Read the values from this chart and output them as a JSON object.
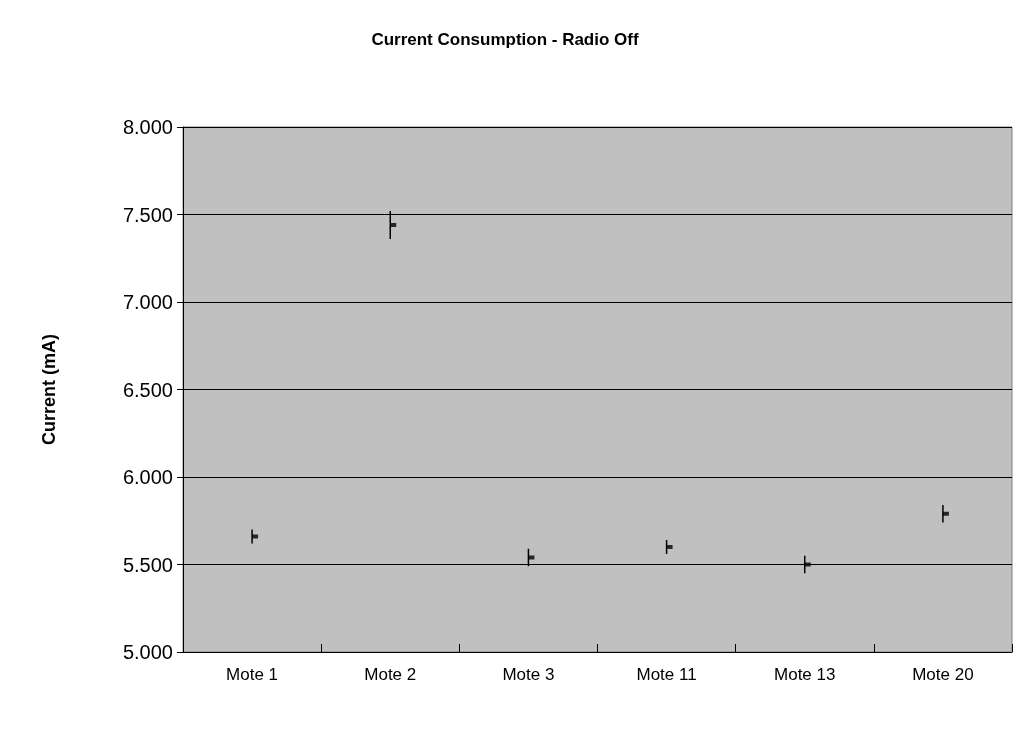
{
  "chart_data": {
    "type": "scatter",
    "title": "Current Consumption - Radio Off",
    "ylabel": "Current (mA)",
    "categories": [
      "Mote 1",
      "Mote 2",
      "Mote 3",
      "Mote 11",
      "Mote 13",
      "Mote 20"
    ],
    "series": [
      {
        "color": "#000000",
        "values": [
          5.66,
          7.44,
          5.54,
          5.6,
          5.5,
          5.79
        ],
        "errors": [
          0.04,
          0.08,
          0.05,
          0.04,
          0.05,
          0.05
        ]
      }
    ],
    "ylim": [
      5,
      8
    ],
    "yticks": [
      {
        "value": 5,
        "label": "5.000"
      },
      {
        "value": 5.5,
        "label": "5.500"
      },
      {
        "value": 6,
        "label": "6.000"
      },
      {
        "value": 6.5,
        "label": "6.500"
      },
      {
        "value": 7,
        "label": "7.000"
      },
      {
        "value": 7.5,
        "label": "7.500"
      },
      {
        "value": 8,
        "label": "8.000"
      }
    ],
    "grid": "y",
    "marker": "square"
  }
}
